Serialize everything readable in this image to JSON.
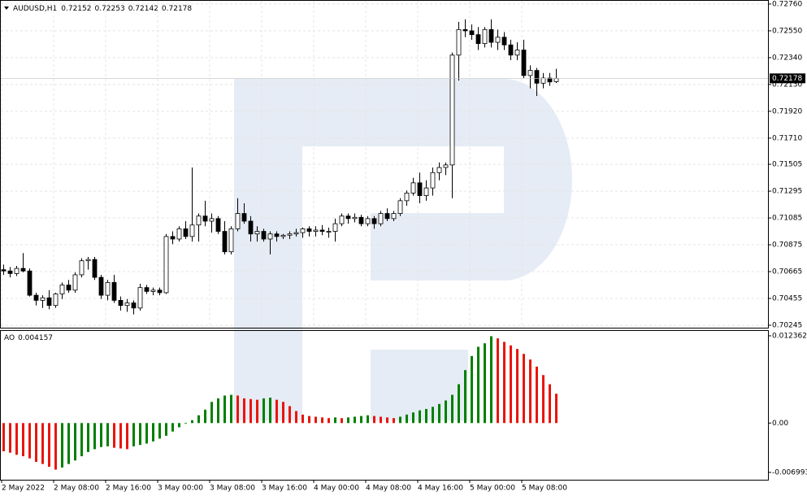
{
  "chart_data": [
    {
      "type": "candlestick",
      "title": "AUDUSD,H1",
      "categories": [
        "2 May 2022",
        null,
        null,
        null,
        null,
        null,
        null,
        null,
        "2 May 08:00",
        null,
        null,
        null,
        null,
        null,
        null,
        null,
        "2 May 16:00",
        null,
        null,
        null,
        null,
        null,
        null,
        null,
        "3 May 00:00",
        null,
        null,
        null,
        null,
        null,
        null,
        null,
        "3 May 08:00",
        null,
        null,
        null,
        null,
        null,
        null,
        null,
        "3 May 16:00",
        null,
        null,
        null,
        null,
        null,
        null,
        null,
        "4 May 00:00",
        null,
        null,
        null,
        null,
        null,
        null,
        null,
        "4 May 08:00",
        null,
        null,
        null,
        null,
        null,
        null,
        null,
        "4 May 16:00",
        null,
        null,
        null,
        null,
        null,
        null,
        null,
        "5 May 00:00",
        null,
        null,
        null,
        null,
        null,
        null,
        null,
        "5 May 08:00",
        null,
        null,
        null,
        null,
        null
      ],
      "open": [
        0.7068,
        0.7067,
        0.7065,
        0.7069,
        0.7067,
        0.7048,
        0.7044,
        0.7046,
        0.704,
        0.7049,
        0.7056,
        0.7052,
        0.7064,
        0.7075,
        0.7076,
        0.7062,
        0.7048,
        0.7058,
        0.7044,
        0.704,
        0.7042,
        0.7038,
        0.7054,
        0.7051,
        0.7052,
        0.705,
        0.7094,
        0.7092,
        0.71,
        0.7094,
        0.7103,
        0.711,
        0.7106,
        0.7108,
        0.7098,
        0.7082,
        0.71,
        0.7112,
        0.7106,
        0.7096,
        0.7098,
        0.7092,
        0.7096,
        0.7094,
        0.7095,
        0.7096,
        0.7097,
        0.71,
        0.7098,
        0.7099,
        0.7098,
        0.7098,
        0.7104,
        0.711,
        0.7108,
        0.7109,
        0.7104,
        0.7108,
        0.7104,
        0.7112,
        0.7108,
        0.7112,
        0.7122,
        0.7128,
        0.7136,
        0.7126,
        0.7132,
        0.7144,
        0.7148,
        0.715,
        0.7236,
        0.7256,
        0.7255,
        0.7252,
        0.7245,
        0.7256,
        0.7246,
        0.725,
        0.7244,
        0.7236,
        0.724,
        0.722,
        0.7224,
        0.7214,
        0.7218,
        0.72152
      ],
      "high": [
        0.7072,
        0.707,
        0.7071,
        0.7081,
        0.7069,
        0.705,
        0.7048,
        0.7052,
        0.705,
        0.7058,
        0.706,
        0.7066,
        0.7077,
        0.7078,
        0.7078,
        0.7064,
        0.706,
        0.7064,
        0.7047,
        0.7045,
        0.7044,
        0.7057,
        0.7056,
        0.7054,
        0.7054,
        0.7096,
        0.7098,
        0.7102,
        0.7106,
        0.7148,
        0.7112,
        0.7122,
        0.7112,
        0.711,
        0.7106,
        0.7102,
        0.7124,
        0.712,
        0.711,
        0.7102,
        0.71,
        0.7098,
        0.7098,
        0.7096,
        0.7098,
        0.71,
        0.7101,
        0.7102,
        0.7102,
        0.7103,
        0.7101,
        0.7108,
        0.7112,
        0.7112,
        0.7112,
        0.7111,
        0.711,
        0.711,
        0.7114,
        0.7116,
        0.7114,
        0.7124,
        0.713,
        0.714,
        0.7144,
        0.7138,
        0.7148,
        0.7152,
        0.7152,
        0.7238,
        0.7262,
        0.7264,
        0.726,
        0.7258,
        0.7258,
        0.7264,
        0.7256,
        0.7254,
        0.7248,
        0.7246,
        0.7248,
        0.7228,
        0.7226,
        0.7222,
        0.7222,
        0.72253
      ],
      "low": [
        0.7064,
        0.7062,
        0.7063,
        0.7066,
        0.7047,
        0.704,
        0.7038,
        0.7037,
        0.7038,
        0.7045,
        0.705,
        0.705,
        0.7062,
        0.7068,
        0.706,
        0.7045,
        0.7044,
        0.7042,
        0.7036,
        0.7035,
        0.7033,
        0.7036,
        0.7049,
        0.7048,
        0.7048,
        0.7049,
        0.7088,
        0.709,
        0.7092,
        0.709,
        0.709,
        0.7102,
        0.7097,
        0.7096,
        0.708,
        0.708,
        0.7098,
        0.7104,
        0.709,
        0.709,
        0.709,
        0.708,
        0.709,
        0.7092,
        0.7092,
        0.7094,
        0.7093,
        0.7094,
        0.7094,
        0.7095,
        0.7093,
        0.709,
        0.7102,
        0.7104,
        0.7105,
        0.7102,
        0.7102,
        0.71,
        0.7102,
        0.7106,
        0.7106,
        0.711,
        0.7118,
        0.7126,
        0.712,
        0.7122,
        0.7126,
        0.7138,
        0.7142,
        0.7124,
        0.7216,
        0.725,
        0.7248,
        0.724,
        0.7242,
        0.7242,
        0.724,
        0.724,
        0.7232,
        0.7232,
        0.7218,
        0.721,
        0.7204,
        0.721,
        0.7212,
        0.72142
      ],
      "close": [
        0.7067,
        0.7065,
        0.7069,
        0.7067,
        0.7048,
        0.7044,
        0.7046,
        0.704,
        0.7049,
        0.7056,
        0.7052,
        0.7064,
        0.7075,
        0.7076,
        0.7062,
        0.7048,
        0.7058,
        0.7044,
        0.704,
        0.7042,
        0.7038,
        0.7054,
        0.7051,
        0.7052,
        0.705,
        0.7094,
        0.7092,
        0.71,
        0.7094,
        0.7103,
        0.711,
        0.7106,
        0.7108,
        0.7098,
        0.7082,
        0.71,
        0.7112,
        0.7106,
        0.7096,
        0.7098,
        0.7092,
        0.7096,
        0.7094,
        0.7095,
        0.7096,
        0.7097,
        0.71,
        0.7098,
        0.7099,
        0.7098,
        0.7098,
        0.7104,
        0.711,
        0.7108,
        0.7109,
        0.7104,
        0.7108,
        0.7104,
        0.7112,
        0.7108,
        0.7112,
        0.7122,
        0.7128,
        0.7136,
        0.7126,
        0.7132,
        0.7144,
        0.7148,
        0.715,
        0.7236,
        0.7256,
        0.7255,
        0.7252,
        0.7245,
        0.7256,
        0.7246,
        0.725,
        0.7244,
        0.7236,
        0.724,
        0.722,
        0.7224,
        0.7214,
        0.7218,
        0.7215,
        0.72178
      ],
      "up_color": "#ffffff",
      "down_color": "#000000",
      "ylim": [
        0.70226,
        0.72785
      ],
      "yticks": [
        {
          "value": 0.7276,
          "label": "0.72760"
        },
        {
          "value": 0.7255,
          "label": "0.72550"
        },
        {
          "value": 0.7234,
          "label": "0.72340"
        },
        {
          "value": 0.7213,
          "label": "0.72130"
        },
        {
          "value": 0.7192,
          "label": "0.71920"
        },
        {
          "value": 0.7171,
          "label": "0.71710"
        },
        0.71505,
        0.71295,
        0.71085,
        0.70875,
        0.70665,
        0.70455,
        0.70245
      ],
      "grid": true
    },
    {
      "type": "histogram",
      "title": "AO",
      "values": [
        -0.004,
        -0.0042,
        -0.0045,
        -0.0047,
        -0.005,
        -0.0055,
        -0.0058,
        -0.0062,
        -0.0066,
        -0.0063,
        -0.0058,
        -0.0053,
        -0.0047,
        -0.0041,
        -0.0037,
        -0.0034,
        -0.0033,
        -0.0035,
        -0.0036,
        -0.0037,
        -0.0033,
        -0.0031,
        -0.0029,
        -0.0026,
        -0.0022,
        -0.0018,
        -0.0012,
        -0.0006,
        -0.0001,
        0.0004,
        0.0011,
        0.0019,
        0.003,
        0.0035,
        0.0039,
        0.004,
        0.0039,
        0.0035,
        0.0034,
        0.0033,
        0.0035,
        0.0036,
        0.0033,
        0.003,
        0.0024,
        0.0017,
        0.0012,
        0.001,
        0.0009,
        0.0008,
        0.0007,
        0.0008,
        0.0007,
        0.0008,
        0.0009,
        0.001,
        0.0011,
        0.001,
        0.0009,
        0.0008,
        0.0007,
        0.0009,
        0.0012,
        0.0015,
        0.0018,
        0.002,
        0.0023,
        0.0027,
        0.0032,
        0.004,
        0.0055,
        0.0075,
        0.0095,
        0.0108,
        0.0113,
        0.0123,
        0.012,
        0.0115,
        0.011,
        0.0105,
        0.0098,
        0.009,
        0.008,
        0.0068,
        0.0055,
        0.004157
      ],
      "up_color": "#008000",
      "down_color": "#e8160c",
      "ylim": [
        -0.00803,
        0.01305
      ],
      "yticks": [
        0.012362,
        {
          "value": 0,
          "label": "0.00"
        },
        -0.006993
      ]
    }
  ]
}
